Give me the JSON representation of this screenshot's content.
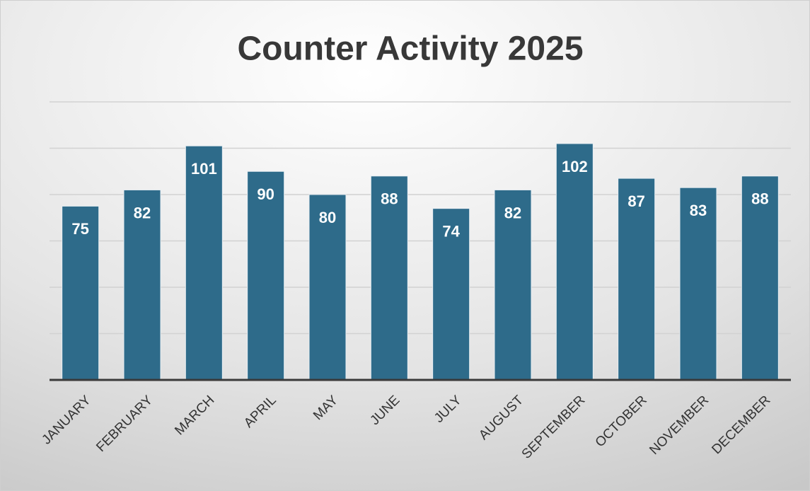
{
  "chart_data": {
    "type": "bar",
    "title": "Counter Activity 2025",
    "categories": [
      "JANUARY",
      "FEBRUARY",
      "MARCH",
      "APRIL",
      "MAY",
      "JUNE",
      "JULY",
      "AUGUST",
      "SEPTEMBER",
      "OCTOBER",
      "NOVEMBER",
      "DECEMBER"
    ],
    "values": [
      75,
      82,
      101,
      90,
      80,
      88,
      74,
      82,
      102,
      87,
      83,
      88
    ],
    "color": "#2e6b8a",
    "ylim": [
      0,
      120
    ],
    "yticks": [
      0,
      20,
      40,
      60,
      80,
      100,
      120
    ],
    "grid": true
  }
}
